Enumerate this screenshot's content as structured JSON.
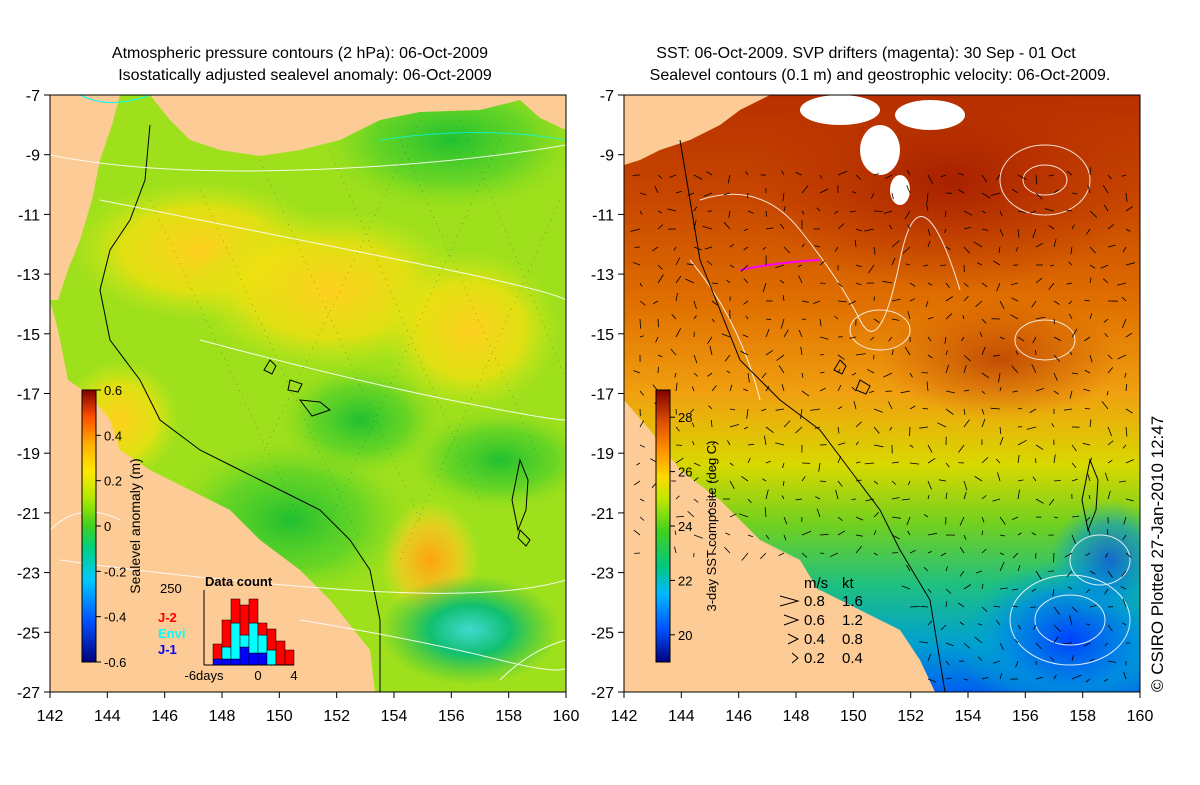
{
  "chart_data": [
    {
      "type": "heatmap",
      "title_lines": [
        "Atmospheric pressure contours (2 hPa): 06-Oct-2009",
        "Isostatically adjusted sealevel anomaly: 06-Oct-2009"
      ],
      "xlim": [
        142,
        160
      ],
      "ylim": [
        -27,
        -7
      ],
      "x_ticks": [
        142,
        144,
        146,
        148,
        150,
        152,
        154,
        156,
        158,
        160
      ],
      "y_ticks": [
        -7,
        -9,
        -11,
        -13,
        -15,
        -17,
        -19,
        -21,
        -23,
        -25,
        -27
      ],
      "colorbar": {
        "label": "Sealevel anomaly (m)",
        "range": [
          -0.6,
          0.6
        ],
        "ticks": [
          0.6,
          0.4,
          0.2,
          0,
          -0.2,
          -0.4,
          -0.6
        ]
      },
      "inset": {
        "title": "Data count",
        "ymax_label": "250",
        "x_tick_labels": [
          "-6days",
          "0",
          "4"
        ],
        "legend": [
          {
            "name": "J-2",
            "color": "#ff0000"
          },
          {
            "name": "Envi",
            "color": "#00ffff"
          },
          {
            "name": "J-1",
            "color": "#0000ff"
          }
        ],
        "bars": [
          {
            "day": -6,
            "j2": 0,
            "envi": 0,
            "j1": 0
          },
          {
            "day": -5,
            "j2": 50,
            "envi": 0,
            "j1": 20
          },
          {
            "day": -4,
            "j2": 90,
            "envi": 40,
            "j1": 20
          },
          {
            "day": -3,
            "j2": 80,
            "envi": 120,
            "j1": 20
          },
          {
            "day": -2,
            "j2": 100,
            "envi": 40,
            "j1": 60
          },
          {
            "day": -1,
            "j2": 80,
            "envi": 100,
            "j1": 40
          },
          {
            "day": 0,
            "j2": 40,
            "envi": 60,
            "j1": 40
          },
          {
            "day": 1,
            "j2": 70,
            "envi": 50,
            "j1": 0
          },
          {
            "day": 2,
            "j2": 80,
            "envi": 0,
            "j1": 0
          },
          {
            "day": 3,
            "j2": 50,
            "envi": 0,
            "j1": 0
          }
        ]
      },
      "colors": {
        "land": "#fccb96",
        "ocean_base": "#9ee01c",
        "contour": "#ffffff",
        "pressure_contour": "#00ffff"
      }
    },
    {
      "type": "heatmap",
      "title_lines": [
        "SST: 06-Oct-2009. SVP drifters (magenta): 30 Sep - 01 Oct",
        "Sealevel contours (0.1 m) and geostrophic velocity: 06-Oct-2009."
      ],
      "xlim": [
        142,
        160
      ],
      "ylim": [
        -27,
        -7
      ],
      "x_ticks": [
        142,
        144,
        146,
        148,
        150,
        152,
        154,
        156,
        158,
        160
      ],
      "y_ticks": [
        -7,
        -9,
        -11,
        -13,
        -15,
        -17,
        -19,
        -21,
        -23,
        -25,
        -27
      ],
      "colorbar": {
        "label": "3-day SST composite (deg C)",
        "range": [
          19,
          29
        ],
        "ticks": [
          28,
          26,
          24,
          22,
          20
        ]
      },
      "velocity_legend": {
        "header_ms": "m/s",
        "header_kt": "kt",
        "rows": [
          {
            "ms": "0.8",
            "kt": "1.6"
          },
          {
            "ms": "0.6",
            "kt": "1.2"
          },
          {
            "ms": "0.4",
            "kt": "0.8"
          },
          {
            "ms": "0.2",
            "kt": "0.4"
          }
        ]
      },
      "colors": {
        "land": "#fccb96",
        "warm": "#c03000",
        "drifter": "#ff00ff"
      }
    }
  ],
  "credit": "© CSIRO Plotted 27-Jan-2010 12:47"
}
